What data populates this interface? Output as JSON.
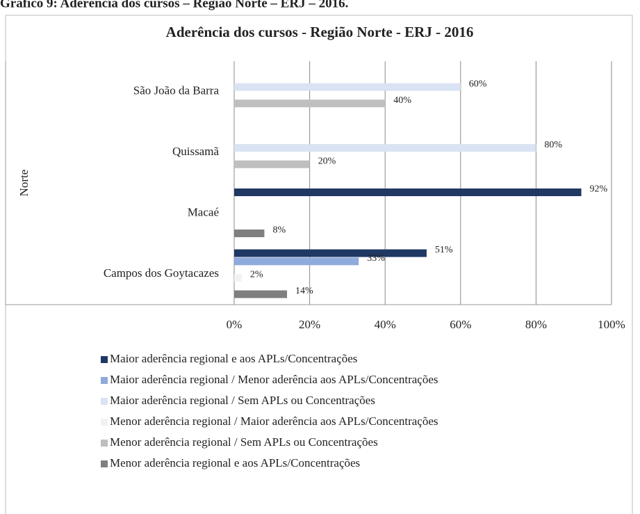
{
  "chart_data": {
    "type": "hbar",
    "caption": "Gráfico 9: Aderência dos cursos – Região Norte – ERJ – 2016.",
    "title": "Aderência dos cursos - Região Norte - ERJ - 2016",
    "y_label": "Norte",
    "categories": [
      "São João da Barra",
      "Quissamã",
      "Macaé",
      "Campos dos Goytacazes"
    ],
    "series": [
      {
        "name": "Maior aderência regional e aos APLs/Concentrações",
        "color": "#1f3864",
        "values": [
          null,
          null,
          92,
          51
        ],
        "value_labels": [
          null,
          null,
          "92%",
          "51%"
        ]
      },
      {
        "name": "Maior aderência regional / Menor aderência aos APLs/Concentrações",
        "color": "#8faadc",
        "values": [
          null,
          null,
          null,
          33
        ],
        "value_labels": [
          null,
          null,
          null,
          "33%"
        ]
      },
      {
        "name": "Maior aderência regional / Sem APLs ou Concentrações",
        "color": "#dae3f3",
        "values": [
          60,
          80,
          null,
          null
        ],
        "value_labels": [
          "60%",
          "80%",
          null,
          null
        ]
      },
      {
        "name": "Menor aderência regional / Maior aderência aos APLs/Concentrações",
        "color": "#f2f2f2",
        "values": [
          null,
          null,
          null,
          2
        ],
        "value_labels": [
          null,
          null,
          null,
          "2%"
        ]
      },
      {
        "name": "Menor aderência regional / Sem APLs ou Concentrações",
        "color": "#bfbfbf",
        "values": [
          40,
          20,
          null,
          null
        ],
        "value_labels": [
          "40%",
          "20%",
          null,
          null
        ]
      },
      {
        "name": "Menor aderência regional e aos APLs/Concentrações",
        "color": "#7f7f7f",
        "values": [
          null,
          null,
          8,
          14
        ],
        "value_labels": [
          null,
          null,
          "8%",
          "14%"
        ]
      }
    ],
    "xlim": [
      0,
      100
    ],
    "xticks": [
      {
        "value": 0,
        "label": "0%"
      },
      {
        "value": 20,
        "label": "20%"
      },
      {
        "value": 40,
        "label": "40%"
      },
      {
        "value": 60,
        "label": "60%"
      },
      {
        "value": 80,
        "label": "80%"
      },
      {
        "value": 100,
        "label": "100%"
      }
    ],
    "grid": true,
    "legend": "bottom"
  }
}
